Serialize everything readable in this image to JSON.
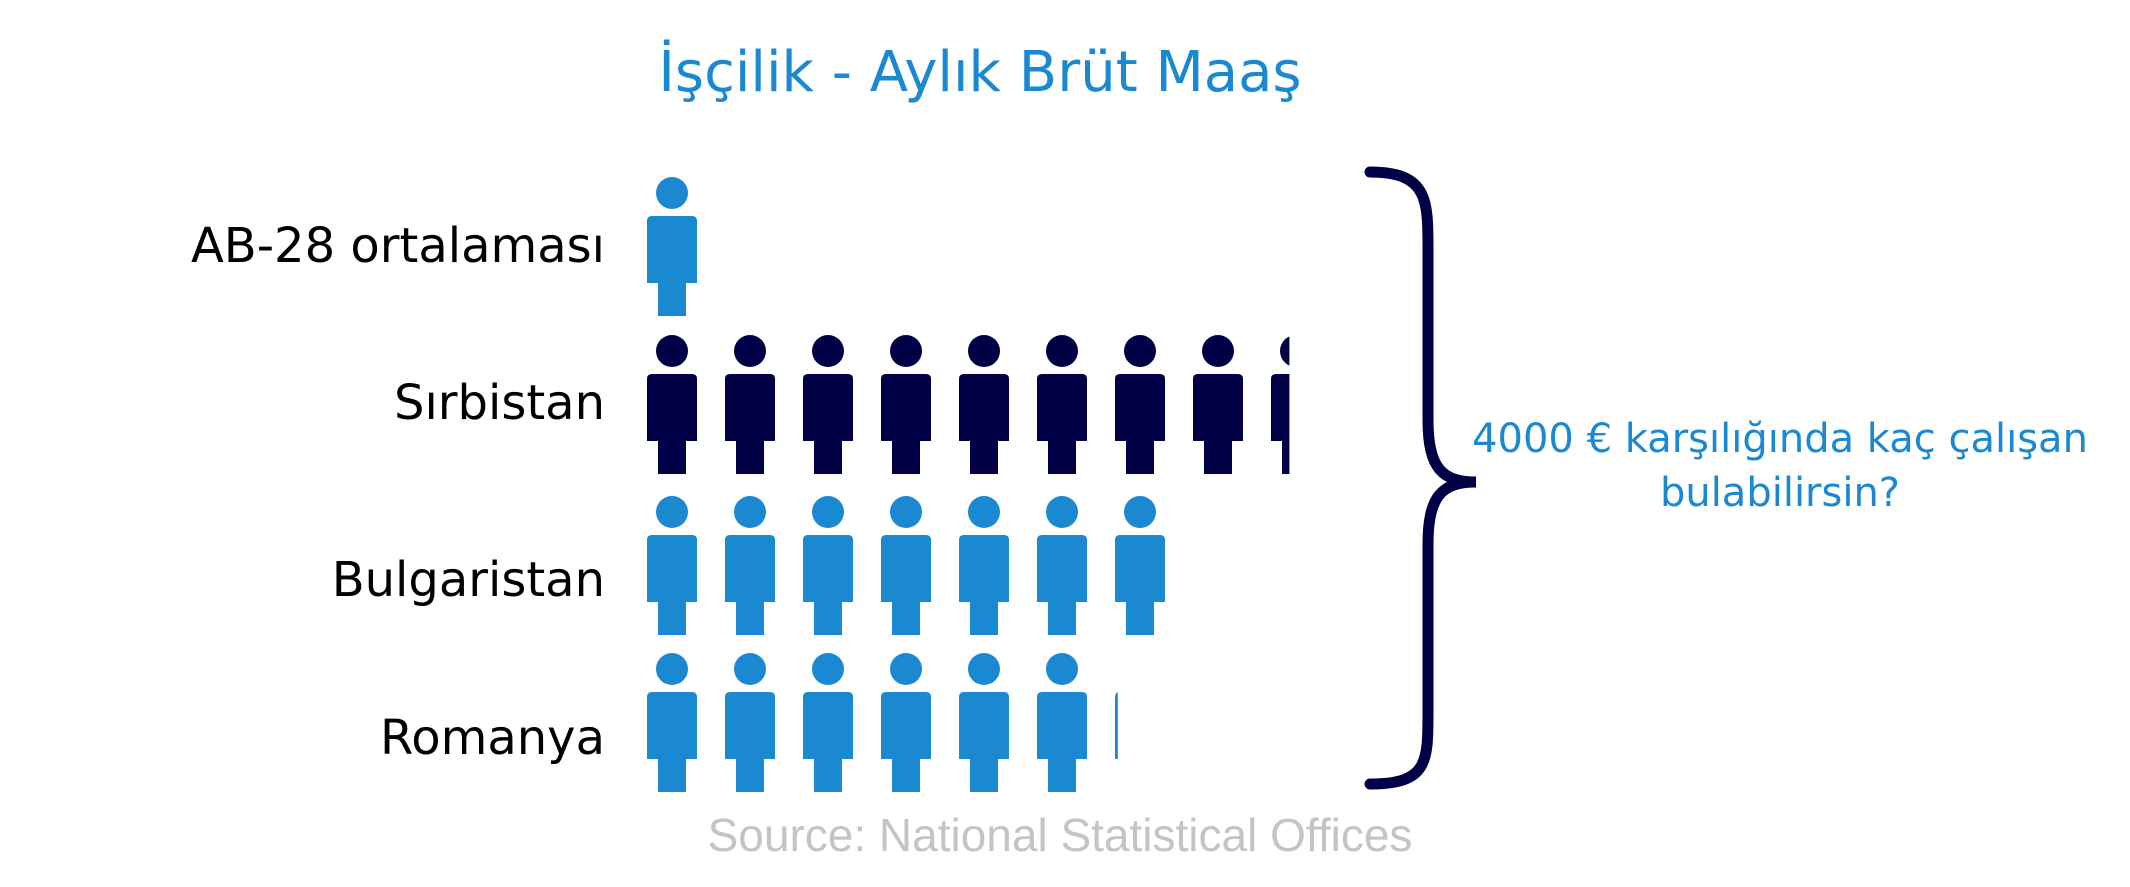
{
  "chart_data": {
    "type": "pictogram",
    "title": "İşçilik - Aylık Brüt Maaş",
    "categories": [
      "AB-28 ortalaması",
      "Sırbistan",
      "Bulgaristan",
      "Romanya"
    ],
    "values": [
      1,
      8.3,
      7,
      6.1
    ],
    "colors": [
      "#1a89d2",
      "#010046",
      "#1a89d2",
      "#1a89d2"
    ],
    "annotation": "4000 € karşılığında kaç çalışan bulabilirsin?",
    "source": "Source: National Statistical Offices",
    "icon": "person-icon"
  }
}
